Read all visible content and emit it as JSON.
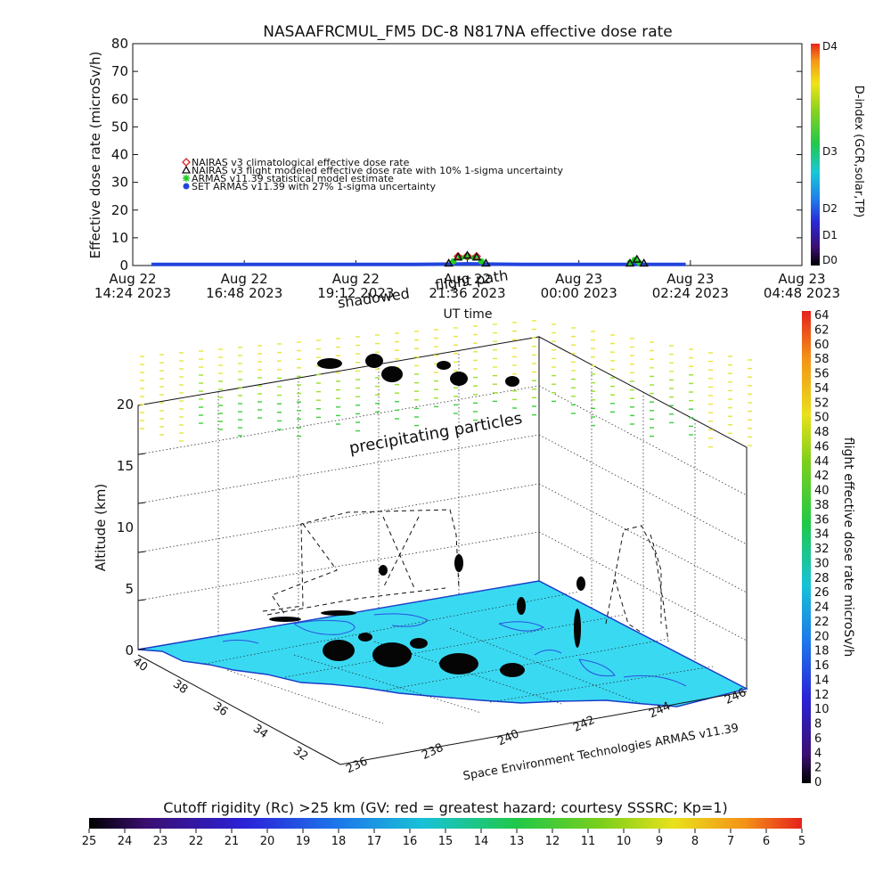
{
  "chart_data": [
    {
      "type": "line",
      "title": "NASAAFRCMUL_FM5 DC-8   N817NA effective dose rate",
      "ylabel": "Effective dose rate (microSv/h)",
      "xlabel": "UT time",
      "ylim": [
        0,
        80
      ],
      "yticks": [
        0,
        10,
        20,
        30,
        40,
        50,
        60,
        70,
        80
      ],
      "xticks": [
        {
          "line1": "Aug 22",
          "line2": "14:24 2023"
        },
        {
          "line1": "Aug 22",
          "line2": "16:48 2023"
        },
        {
          "line1": "Aug 22",
          "line2": "19:12 2023"
        },
        {
          "line1": "Aug 22",
          "line2": "21:36 2023"
        },
        {
          "line1": "Aug 23",
          "line2": "00:00 2023"
        },
        {
          "line1": "Aug 23",
          "line2": "02:24 2023"
        },
        {
          "line1": "Aug 23",
          "line2": "04:48 2023"
        }
      ],
      "legend": [
        {
          "symbol": "diamond",
          "color": "#dd2222",
          "label": "NAIRAS v3 climatological effective dose rate"
        },
        {
          "symbol": "triangle",
          "color": "#111111",
          "label": "NAIRAS v3 flight modeled effective dose rate with 10% 1-sigma uncertainty"
        },
        {
          "symbol": "asterisk",
          "color": "#22cc22",
          "label": "ARMAS v11.39 statistical model estimate"
        },
        {
          "symbol": "dot",
          "color": "#2244dd",
          "label": "SET ARMAS v11.39 with 27% 1-sigma uncertainty"
        }
      ],
      "legend_position": "upper-left",
      "series": [
        {
          "name": "SET ARMAS v11.39 with 27% 1-sigma uncertainty",
          "color": "#2244dd",
          "x": [
            14.8,
            16.0,
            17.5,
            19.0,
            20.5,
            21.3,
            21.6,
            22.0,
            22.8,
            23.5,
            24.5,
            25.5,
            26.3
          ],
          "y": [
            0.4,
            0.4,
            0.4,
            0.4,
            0.4,
            0.5,
            0.6,
            0.5,
            0.4,
            0.4,
            0.4,
            0.4,
            0.4
          ]
        },
        {
          "name": "ARMAS v11.39 statistical model estimate",
          "color": "#22cc22",
          "x": [
            21.3,
            21.45,
            21.6,
            21.75,
            21.9,
            25.1,
            25.2,
            25.3
          ],
          "y": [
            1.5,
            2.8,
            3.0,
            2.8,
            1.5,
            1.0,
            2.0,
            1.0
          ]
        },
        {
          "name": "NAIRAS v3 climatological effective dose rate",
          "color": "#dd2222",
          "x": [
            21.4,
            21.6,
            21.8
          ],
          "y": [
            3.3,
            3.5,
            3.3
          ]
        },
        {
          "name": "NAIRAS v3 flight modeled effective dose rate with 10% 1-sigma uncertainty",
          "color": "#111111",
          "x": [
            21.2,
            21.4,
            21.6,
            21.8,
            22.0,
            25.1,
            25.25,
            25.4
          ],
          "y": [
            0.8,
            3.0,
            3.6,
            3.0,
            0.8,
            0.8,
            2.2,
            0.8
          ]
        }
      ],
      "d_index_colorbar": {
        "label": "D-index (GCR,solar,TP)",
        "ticks": [
          "D4",
          "D3",
          "D2",
          "D1",
          "D0"
        ]
      }
    },
    {
      "type": "scatter",
      "zlabel": "Altitude (km)",
      "zticks": [
        0,
        5,
        10,
        15,
        20
      ],
      "latitude_ticks": [
        "40",
        "38",
        "36",
        "34",
        "32"
      ],
      "longitude_ticks": [
        "236",
        "238",
        "240",
        "242",
        "244",
        "246"
      ],
      "annotations": [
        "flight path",
        "shadowed",
        "precipitating particles"
      ],
      "credit": "Space Environment Technologies ARMAS v11.39",
      "surface_color": "#3ad9f2",
      "colorbar": {
        "label": "flight effective dose rate microSv/h",
        "ticks": [
          0,
          2,
          4,
          6,
          8,
          10,
          12,
          14,
          16,
          18,
          20,
          22,
          24,
          26,
          28,
          30,
          32,
          34,
          36,
          38,
          40,
          42,
          44,
          46,
          48,
          50,
          52,
          54,
          56,
          58,
          60,
          62,
          64
        ]
      }
    }
  ],
  "cutoff_bar": {
    "title": "Cutoff rigidity (Rc) >25 km (GV: red = greatest hazard; courtesy SSSRC; Kp=1)",
    "ticks": [
      "25",
      "24",
      "23",
      "22",
      "21",
      "20",
      "19",
      "18",
      "17",
      "16",
      "15",
      "14",
      "13",
      "12",
      "11",
      "10",
      "9",
      "8",
      "7",
      "6",
      "5"
    ]
  }
}
